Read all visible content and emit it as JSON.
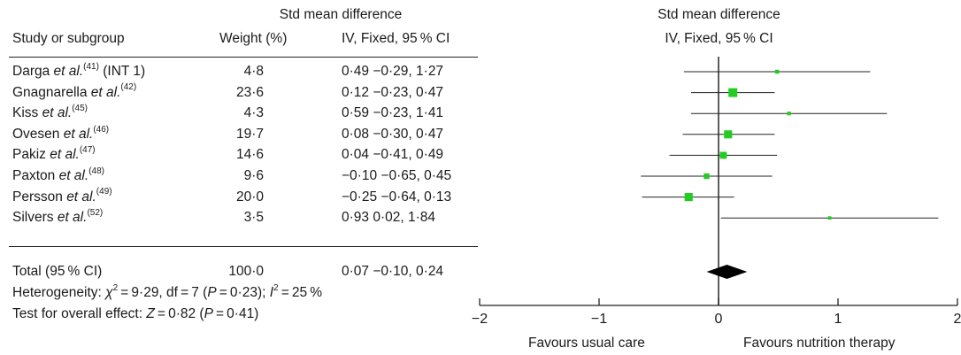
{
  "header": {
    "left_group_title": "Std mean difference",
    "col_study": "Study or subgroup",
    "col_weight": "Weight (%)",
    "col_ci": "IV, Fixed, 95 % CI",
    "plot_title": "Std mean difference",
    "plot_subtitle": "IV, Fixed, 95 % CI"
  },
  "rows": [
    {
      "author": "Darga",
      "etal": "et al.",
      "ref": "(41)",
      "suffix": " (INT 1)",
      "weight": "4·8",
      "est": "0·49",
      "ci": "−0·29, 1·27"
    },
    {
      "author": "Gnagnarella",
      "etal": "et al.",
      "ref": "(42)",
      "suffix": "",
      "weight": "23·6",
      "est": "0·12",
      "ci": "−0·23, 0·47"
    },
    {
      "author": "Kiss",
      "etal": "et al.",
      "ref": "(45)",
      "suffix": "",
      "weight": "4·3",
      "est": "0·59",
      "ci": "−0·23, 1·41"
    },
    {
      "author": "Ovesen",
      "etal": "et al.",
      "ref": "(46)",
      "suffix": "",
      "weight": "19·7",
      "est": "0·08",
      "ci": "−0·30, 0·47"
    },
    {
      "author": "Pakiz",
      "etal": "et al.",
      "ref": "(47)",
      "suffix": "",
      "weight": "14·6",
      "est": "0·04",
      "ci": "−0·41, 0·49"
    },
    {
      "author": "Paxton",
      "etal": "et al.",
      "ref": "(48)",
      "suffix": "",
      "weight": "9·6",
      "est": "−0·10",
      "ci": "−0·65, 0·45"
    },
    {
      "author": "Persson",
      "etal": "et al.",
      "ref": "(49)",
      "suffix": "",
      "weight": "20·0",
      "est": "−0·25",
      "ci": "−0·64, 0·13"
    },
    {
      "author": "Silvers",
      "etal": "et al.",
      "ref": "(52)",
      "suffix": "",
      "weight": "3·5",
      "est": "0·93",
      "ci": "0·02, 1·84"
    }
  ],
  "total": {
    "label": "Total (95 % CI)",
    "weight": "100·0",
    "est": "0·07",
    "ci": "−0·10, 0·24"
  },
  "heterogeneity": {
    "prefix": "Heterogeneity: ",
    "chi_sym": "χ",
    "chi_rest": " = 9·29, df = 7 (",
    "p_sym": "P",
    "p_rest": " = 0·23); ",
    "i_sym": "I",
    "i_rest": " = 25 %"
  },
  "overall": {
    "prefix": "Test for overall effect: ",
    "z_sym": "Z",
    "z_rest": " = 0·82 (",
    "p_sym": "P",
    "p_rest": " = 0·41)"
  },
  "axis_labels": {
    "left": "Favours usual care",
    "right": "Favours nutrition therapy"
  },
  "colors": {
    "marker": "#22cc22",
    "ci_line": "#222222",
    "diamond": "#000000",
    "ref_line": "#333333"
  },
  "chart_data": {
    "type": "forest",
    "title": "Std mean difference",
    "subtitle": "IV, Fixed, 95 % CI",
    "xlim": [
      -2,
      2
    ],
    "xticks": [
      -2,
      -1,
      0,
      1,
      2
    ],
    "xtick_labels": [
      "−2",
      "−1",
      "0",
      "1",
      "2"
    ],
    "studies": [
      {
        "name": "Darga et al. (INT 1)",
        "weight": 4.8,
        "smd": 0.49,
        "lower": -0.29,
        "upper": 1.27
      },
      {
        "name": "Gnagnarella et al.",
        "weight": 23.6,
        "smd": 0.12,
        "lower": -0.23,
        "upper": 0.47
      },
      {
        "name": "Kiss et al.",
        "weight": 4.3,
        "smd": 0.59,
        "lower": -0.23,
        "upper": 1.41
      },
      {
        "name": "Ovesen et al.",
        "weight": 19.7,
        "smd": 0.08,
        "lower": -0.3,
        "upper": 0.47
      },
      {
        "name": "Pakiz et al.",
        "weight": 14.6,
        "smd": 0.04,
        "lower": -0.41,
        "upper": 0.49
      },
      {
        "name": "Paxton et al.",
        "weight": 9.6,
        "smd": -0.1,
        "lower": -0.65,
        "upper": 0.45
      },
      {
        "name": "Persson et al.",
        "weight": 20.0,
        "smd": -0.25,
        "lower": -0.64,
        "upper": 0.13
      },
      {
        "name": "Silvers et al.",
        "weight": 3.5,
        "smd": 0.93,
        "lower": 0.02,
        "upper": 1.84
      }
    ],
    "pooled": {
      "weight": 100.0,
      "smd": 0.07,
      "lower": -0.1,
      "upper": 0.24
    }
  }
}
